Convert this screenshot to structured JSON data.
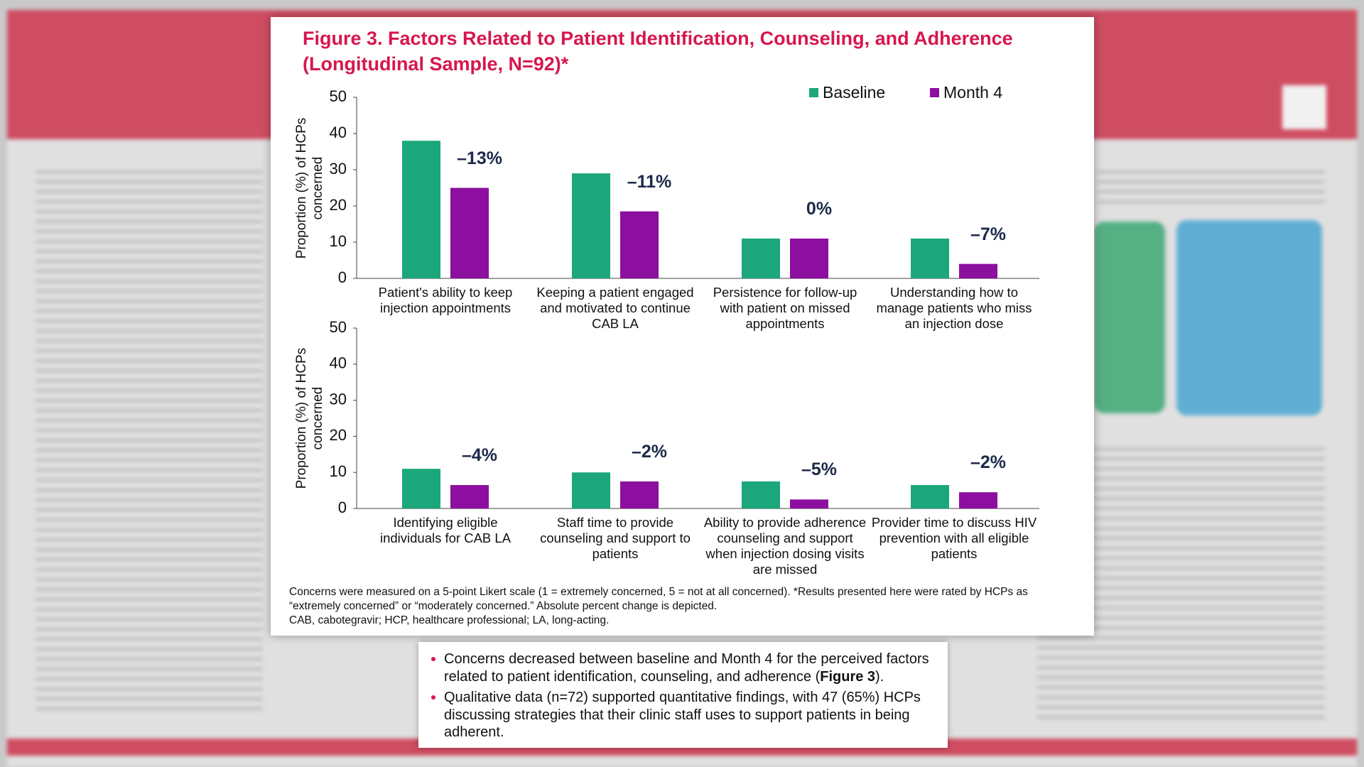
{
  "figure": {
    "title": "Figure 3. Factors Related to Patient Identification, Counseling, and Adherence (Longitudinal Sample, N=92)*",
    "footnote": [
      "Concerns were measured on a 5-point Likert scale (1 = extremely concerned, 5 = not at all concerned). *Results presented here were rated by HCPs as “extremely concerned” or “moderately concerned.” Absolute percent change is depicted.",
      "CAB, cabotegravir; HCP, healthcare professional; LA, long-acting."
    ]
  },
  "chart_data": [
    {
      "type": "bar",
      "y_label": "Proportion (%) of HCPs concerned",
      "categories": [
        "Patient's ability to keep injection appointments",
        "Keeping a patient engaged and motivated to continue CAB LA",
        "Persistence for follow-up with patient on missed appointments",
        "Understanding how to manage patients who miss an injection dose"
      ],
      "series": [
        {
          "name": "Baseline",
          "color": "#1ba77b",
          "values": [
            38,
            29,
            11,
            11
          ]
        },
        {
          "name": "Month 4",
          "color": "#8c0f9f",
          "values": [
            25,
            18.5,
            11,
            4
          ]
        }
      ],
      "annotations": [
        "–13%",
        "–11%",
        "0%",
        "–7%"
      ],
      "ylim": [
        0,
        50
      ],
      "yticks": [
        0,
        10,
        20,
        30,
        40,
        50
      ],
      "legend": "top-right"
    },
    {
      "type": "bar",
      "y_label": "Proportion (%) of HCPs concerned",
      "categories": [
        "Identifying eligible individuals for CAB LA",
        "Staff time to provide counseling and support to patients",
        "Ability to provide adherence counseling and support when injection dosing visits are missed",
        "Provider time to discuss HIV prevention with all eligible patients"
      ],
      "series": [
        {
          "color": "#1ba77b",
          "values": [
            11,
            10,
            7.5,
            6.5
          ]
        },
        {
          "color": "#8c0f9f",
          "values": [
            6.5,
            7.5,
            2.5,
            4.5
          ]
        }
      ],
      "annotations": [
        "–4%",
        "–2%",
        "–5%",
        "–2%"
      ],
      "ylim": [
        0,
        50
      ],
      "yticks": [
        0,
        10,
        20,
        30,
        40,
        50
      ]
    }
  ],
  "summary": {
    "bullets": [
      [
        "Concerns decreased between baseline and Month 4 for the perceived factors related to patient identification, counseling, and adherence (",
        "Figure 3",
        ")."
      ],
      [
        "Qualitative data (n=72) supported quantitative findings, with 47 (65%) HCPs discussing strategies that their clinic staff uses to support patients in being adherent."
      ]
    ]
  }
}
